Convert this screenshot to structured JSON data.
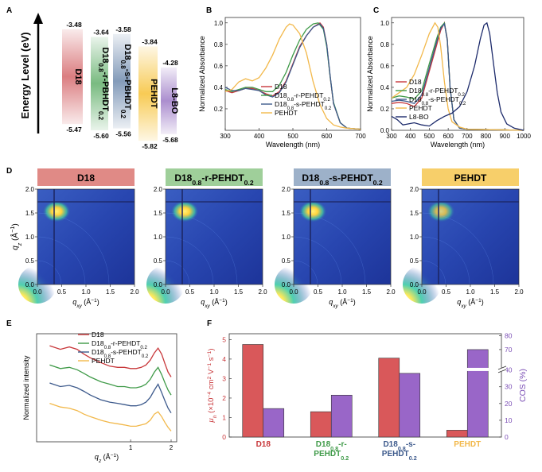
{
  "panel_labels": {
    "a": "A",
    "b": "B",
    "c": "C",
    "d": "D",
    "e": "E",
    "f": "F"
  },
  "energy": {
    "axis_label": "Energy Level (eV)",
    "materials": [
      {
        "name": "D18",
        "lumo": "-3.48",
        "homo": "-5.47",
        "color": "#d9777a"
      },
      {
        "name": "D18",
        "sub1": "0.8",
        "mid": "-r-PBHDT",
        "sub2": "0.2",
        "lumo": "-3.64",
        "homo": "-5.60",
        "color": "#72b77a"
      },
      {
        "name": "D18",
        "sub1": "0.8",
        "mid": "-s-PBHDT",
        "sub2": "0.2",
        "lumo": "-3.58",
        "homo": "-5.56",
        "color": "#7d96b6"
      },
      {
        "name": "PEHDT",
        "lumo": "-3.84",
        "homo": "-5.82",
        "color": "#f7c84c"
      },
      {
        "name": "L8-BO",
        "lumo": "-4.28",
        "homo": "-5.68",
        "color": "#a788cc"
      }
    ]
  },
  "chart_data": [
    {
      "id": "B",
      "type": "line",
      "xlabel": "Wavelength (nm)",
      "ylabel": "Normalized Absorbance",
      "xlim": [
        300,
        700
      ],
      "ylim": [
        0,
        1.05
      ],
      "xticks": [
        300,
        400,
        500,
        600,
        700
      ],
      "yticks": [
        0.2,
        0.4,
        0.6,
        0.8,
        1.0
      ],
      "legend_position": "bottom-middle",
      "series": [
        {
          "name": "D18",
          "color": "#c8373a",
          "x": [
            300,
            320,
            340,
            360,
            380,
            400,
            420,
            440,
            460,
            480,
            500,
            520,
            540,
            560,
            580,
            590,
            600,
            610,
            620,
            640,
            660,
            700
          ],
          "y": [
            0.37,
            0.35,
            0.37,
            0.39,
            0.39,
            0.37,
            0.34,
            0.32,
            0.36,
            0.46,
            0.62,
            0.78,
            0.88,
            0.96,
            1.0,
            0.96,
            0.8,
            0.5,
            0.25,
            0.07,
            0.02,
            0.01
          ]
        },
        {
          "name": "D18",
          "sub": "0.8",
          "mid": "-r-PEHDT",
          "sub2": "0.2",
          "color": "#3f9a48",
          "x": [
            300,
            320,
            340,
            360,
            380,
            400,
            420,
            440,
            460,
            480,
            500,
            520,
            540,
            560,
            575,
            590,
            600,
            610,
            620,
            640,
            660,
            700
          ],
          "y": [
            0.38,
            0.36,
            0.38,
            0.4,
            0.4,
            0.38,
            0.36,
            0.36,
            0.42,
            0.54,
            0.7,
            0.84,
            0.94,
            0.99,
            1.0,
            0.94,
            0.78,
            0.5,
            0.26,
            0.07,
            0.02,
            0.01
          ]
        },
        {
          "name": "D18",
          "sub": "0.8",
          "mid": "-s-PEHDT",
          "sub2": "0.2",
          "color": "#3d5a8c",
          "x": [
            300,
            320,
            340,
            360,
            380,
            400,
            420,
            440,
            460,
            480,
            500,
            520,
            540,
            560,
            580,
            590,
            600,
            610,
            620,
            640,
            660,
            700
          ],
          "y": [
            0.4,
            0.37,
            0.37,
            0.39,
            0.38,
            0.37,
            0.33,
            0.31,
            0.35,
            0.45,
            0.61,
            0.77,
            0.88,
            0.96,
            0.99,
            0.95,
            0.8,
            0.51,
            0.25,
            0.07,
            0.02,
            0.01
          ]
        },
        {
          "name": "PEHDT",
          "color": "#f2b84a",
          "x": [
            300,
            320,
            340,
            360,
            380,
            400,
            420,
            440,
            460,
            480,
            490,
            500,
            520,
            540,
            560,
            580,
            600,
            620,
            640,
            660,
            700
          ],
          "y": [
            0.36,
            0.38,
            0.45,
            0.48,
            0.46,
            0.49,
            0.58,
            0.7,
            0.85,
            0.96,
            0.99,
            0.98,
            0.9,
            0.72,
            0.45,
            0.24,
            0.11,
            0.05,
            0.03,
            0.02,
            0.01
          ]
        }
      ]
    },
    {
      "id": "C",
      "type": "line",
      "xlabel": "Wavelength (nm)",
      "ylabel": "Normalized Absorbance",
      "xlim": [
        300,
        1000
      ],
      "ylim": [
        0,
        1.05
      ],
      "xticks": [
        300,
        400,
        500,
        600,
        700,
        800,
        900,
        1000
      ],
      "yticks": [
        0.0,
        0.2,
        0.4,
        0.6,
        0.8,
        1.0
      ],
      "legend_position": "bottom-left",
      "series": [
        {
          "name": "D18",
          "color": "#c8373a",
          "x": [
            300,
            340,
            380,
            420,
            460,
            500,
            540,
            560,
            580,
            595,
            610,
            630,
            660,
            700,
            1000
          ],
          "y": [
            0.25,
            0.26,
            0.25,
            0.22,
            0.3,
            0.55,
            0.8,
            0.93,
            1.0,
            0.85,
            0.4,
            0.1,
            0.02,
            0.01,
            0.0
          ]
        },
        {
          "name": "D18",
          "sub": "0.8",
          "mid": "-r-PEHDT",
          "sub2": "0.2",
          "color": "#3f9a48",
          "x": [
            300,
            340,
            380,
            420,
            460,
            500,
            540,
            560,
            580,
            595,
            610,
            630,
            660,
            700,
            1000
          ],
          "y": [
            0.3,
            0.32,
            0.31,
            0.29,
            0.37,
            0.62,
            0.86,
            0.96,
            1.0,
            0.84,
            0.4,
            0.1,
            0.02,
            0.01,
            0.0
          ]
        },
        {
          "name": "D18",
          "sub": "0.8",
          "mid": "-s-PEHDT",
          "sub2": "0.2",
          "color": "#3d5a8c",
          "x": [
            300,
            340,
            380,
            420,
            460,
            500,
            540,
            560,
            580,
            595,
            610,
            630,
            660,
            700,
            1000
          ],
          "y": [
            0.27,
            0.28,
            0.27,
            0.25,
            0.33,
            0.58,
            0.83,
            0.95,
            0.99,
            0.84,
            0.4,
            0.1,
            0.02,
            0.01,
            0.0
          ]
        },
        {
          "name": "PEHDT",
          "color": "#f2b84a",
          "x": [
            300,
            340,
            380,
            420,
            460,
            500,
            530,
            545,
            560,
            580,
            600,
            620,
            660,
            700,
            1000
          ],
          "y": [
            0.3,
            0.35,
            0.4,
            0.52,
            0.7,
            0.9,
            1.0,
            0.96,
            0.78,
            0.45,
            0.2,
            0.08,
            0.03,
            0.01,
            0.0
          ]
        },
        {
          "name": "L8-BO",
          "color": "#1c2a6b",
          "x": [
            300,
            330,
            360,
            390,
            420,
            460,
            500,
            540,
            580,
            620,
            660,
            700,
            740,
            770,
            790,
            805,
            820,
            840,
            860,
            880,
            910,
            950,
            1000
          ],
          "y": [
            0.13,
            0.1,
            0.05,
            0.06,
            0.07,
            0.05,
            0.04,
            0.09,
            0.13,
            0.16,
            0.22,
            0.36,
            0.6,
            0.85,
            0.98,
            1.0,
            0.9,
            0.62,
            0.35,
            0.17,
            0.06,
            0.02,
            0.0
          ]
        }
      ]
    },
    {
      "id": "E",
      "type": "line",
      "xlabel": "q",
      "xlabel_sub": "z",
      "xlabel_unit": " (Å",
      "xlabel_sup": "−1",
      "xlabel_end": ")",
      "ylabel": "Normalized intensity",
      "xscale": "log",
      "xlim": [
        0.2,
        2.2
      ],
      "xticks": [
        1,
        2
      ],
      "legend_position": "top-middle",
      "series": [
        {
          "name": "D18",
          "color": "#c8373a",
          "x": [
            0.25,
            0.3,
            0.35,
            0.4,
            0.45,
            0.5,
            0.6,
            0.7,
            0.8,
            0.9,
            1.0,
            1.1,
            1.2,
            1.3,
            1.4,
            1.5,
            1.6,
            1.7,
            1.8,
            1.9,
            2.0
          ],
          "y": [
            8.0,
            7.7,
            7.9,
            7.7,
            7.3,
            7.0,
            6.6,
            6.3,
            6.2,
            6.2,
            6.1,
            6.1,
            6.2,
            6.4,
            6.8,
            7.4,
            7.8,
            7.3,
            6.5,
            5.8,
            5.4
          ]
        },
        {
          "name": "D18",
          "sub": "0.8",
          "mid": "-r-PEHDT",
          "sub2": "0.2",
          "color": "#3f9a48",
          "x": [
            0.25,
            0.3,
            0.35,
            0.4,
            0.45,
            0.5,
            0.6,
            0.7,
            0.8,
            0.9,
            1.0,
            1.1,
            1.2,
            1.3,
            1.4,
            1.5,
            1.6,
            1.7,
            1.8,
            1.9,
            2.0
          ],
          "y": [
            6.4,
            6.1,
            6.2,
            6.0,
            5.7,
            5.4,
            5.0,
            4.8,
            4.6,
            4.6,
            4.5,
            4.5,
            4.6,
            4.8,
            5.2,
            5.8,
            6.2,
            5.6,
            4.9,
            4.3,
            3.9
          ]
        },
        {
          "name": "D18",
          "sub": "0.8",
          "mid": "-s-PEHDT",
          "sub2": "0.2",
          "color": "#3d5a8c",
          "x": [
            0.25,
            0.3,
            0.35,
            0.4,
            0.45,
            0.5,
            0.6,
            0.7,
            0.8,
            0.9,
            1.0,
            1.1,
            1.2,
            1.3,
            1.4,
            1.5,
            1.6,
            1.7,
            1.8,
            1.9,
            2.0
          ],
          "y": [
            4.9,
            4.6,
            4.7,
            4.5,
            4.2,
            3.9,
            3.5,
            3.3,
            3.2,
            3.1,
            3.0,
            3.0,
            3.1,
            3.3,
            3.7,
            4.3,
            4.8,
            4.1,
            3.4,
            2.8,
            2.4
          ]
        },
        {
          "name": "PEHDT",
          "color": "#f2b84a",
          "x": [
            0.25,
            0.3,
            0.35,
            0.4,
            0.45,
            0.5,
            0.6,
            0.7,
            0.8,
            0.9,
            1.0,
            1.1,
            1.2,
            1.3,
            1.4,
            1.5,
            1.6,
            1.7,
            1.8,
            1.9,
            2.0
          ],
          "y": [
            3.2,
            2.9,
            2.8,
            2.6,
            2.3,
            2.1,
            1.8,
            1.6,
            1.5,
            1.4,
            1.3,
            1.3,
            1.4,
            1.5,
            1.8,
            2.3,
            2.5,
            2.1,
            1.6,
            1.2,
            0.9
          ]
        }
      ]
    },
    {
      "id": "F",
      "type": "bar",
      "categories": [
        {
          "l1_a": "D18",
          "l1_sub": "",
          "l1_b": "",
          "l2": "",
          "l2_sub": "",
          "color": "#c8373a"
        },
        {
          "l1_a": "D18",
          "l1_sub": "0.8",
          "l1_b": "-r-",
          "l2": "PEHDT",
          "l2_sub": "0.2",
          "color": "#3f9a48"
        },
        {
          "l1_a": "D18",
          "l1_sub": "0.8",
          "l1_b": "-s-",
          "l2": "PEHDT",
          "l2_sub": "0.2",
          "color": "#3d5a8c"
        },
        {
          "l1_a": "PEHDT",
          "l1_sub": "",
          "l1_b": "",
          "l2": "",
          "l2_sub": "",
          "color": "#f2b84a"
        }
      ],
      "mobility": {
        "values": [
          4.75,
          1.3,
          4.05,
          0.35
        ],
        "color": "#d9585a",
        "ylim": [
          0,
          5.3
        ],
        "yticks": [
          0,
          1,
          2,
          3,
          4,
          5
        ],
        "ylabel_sym": "μ",
        "ylabel_sub": "h",
        "ylabel_unit": " (×10",
        "ylabel_sup1": "−4",
        "ylabel_rest": " cm",
        "ylabel_sup2": "2",
        "ylabel_rest2": " V",
        "ylabel_sup3": "−1",
        "ylabel_rest3": " s",
        "ylabel_sup4": "−1",
        "ylabel_end": ")"
      },
      "cos": {
        "values": [
          17,
          25,
          38,
          70
        ],
        "color": "#9966c8",
        "ylabel": "COS (%)",
        "axis_break": true,
        "yticks": [
          0,
          10,
          20,
          30,
          40,
          70,
          80
        ]
      }
    }
  ],
  "giwaxs": {
    "xlabel": "q",
    "xlabel_sub": "xy",
    "xlabel_unit": " (Å",
    "xlabel_sup": "−1",
    "xlabel_end": ")",
    "ylabel": "q",
    "ylabel_sub": "z",
    "ylabel_unit": " (Å",
    "ylabel_sup": "−1",
    "ylabel_end": ")",
    "xticks": [
      "0.0",
      "0.5",
      "1.0",
      "1.5",
      "2.0"
    ],
    "yticks": [
      "0.0",
      "0.5",
      "1.0",
      "1.5",
      "2.0"
    ],
    "panels": [
      {
        "title_a": "D18",
        "title_sub": "",
        "title_b": "",
        "title_sub2": "",
        "color": "#e08a86"
      },
      {
        "title_a": "D18",
        "title_sub": "0.8",
        "title_b": "-r-PEHDT",
        "title_sub2": "0.2",
        "color": "#9fcf9a"
      },
      {
        "title_a": "D18",
        "title_sub": "0.8",
        "title_b": "-s-PEHDT",
        "title_sub2": "0.2",
        "color": "#9db1c9"
      },
      {
        "title_a": "PEHDT",
        "title_sub": "",
        "title_b": "",
        "title_sub2": "",
        "color": "#f7cf6a"
      }
    ]
  }
}
